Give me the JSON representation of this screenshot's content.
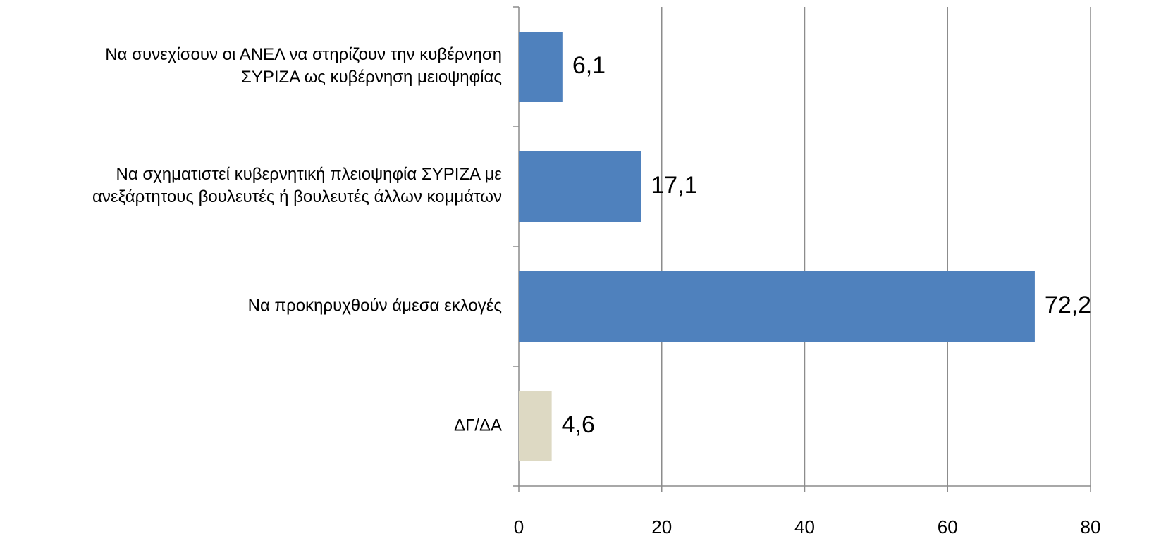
{
  "chart_data": {
    "type": "bar",
    "orientation": "horizontal",
    "categories": [
      "Να συνεχίσουν οι ΑΝΕΛ να στηρίζουν την κυβέρνηση\nΣΥΡΙΖΑ ως κυβέρνηση μειοψηφίας",
      "Να σχηματιστεί κυβερνητική πλειοψηφία ΣΥΡΙΖΑ με\nανεξάρτητους βουλευτές ή βουλευτές άλλων κομμάτων",
      "Να προκηρυχθούν άμεσα εκλογές",
      "ΔΓ/ΔΑ"
    ],
    "values": [
      6.1,
      17.1,
      72.2,
      4.6
    ],
    "value_labels": [
      "6,1",
      "17,1",
      "72,2",
      "4,6"
    ],
    "colors": [
      "#4f81bd",
      "#4f81bd",
      "#4f81bd",
      "#ddd9c3"
    ],
    "xlim": [
      0,
      80
    ],
    "xticks": [
      0,
      20,
      40,
      60,
      80
    ],
    "grid": true
  }
}
